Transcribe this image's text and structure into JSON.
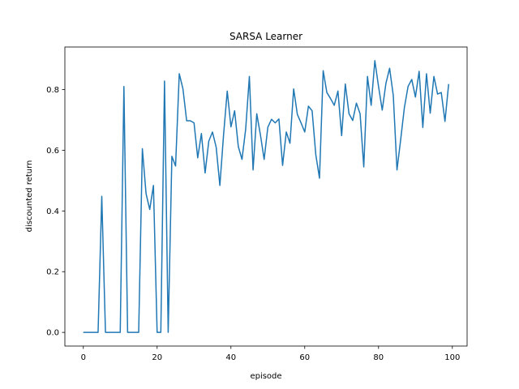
{
  "chart_data": {
    "type": "line",
    "title": "SARSA Learner",
    "xlabel": "episode",
    "ylabel": "discounted return",
    "xlim": [
      -5,
      104
    ],
    "ylim": [
      -0.045,
      0.94
    ],
    "xticks": [
      0,
      20,
      40,
      60,
      80,
      100
    ],
    "yticks": [
      0.0,
      0.2,
      0.4,
      0.6,
      0.8
    ],
    "ytick_labels": [
      "0.0",
      "0.2",
      "0.4",
      "0.6",
      "0.8"
    ],
    "grid": false,
    "line_color": "#1f77b4",
    "series": [
      {
        "x": [
          0,
          1,
          2,
          3,
          4,
          5,
          6,
          7,
          8,
          9,
          10,
          11,
          12,
          13,
          14,
          15,
          16,
          17,
          18,
          19,
          20,
          21,
          22,
          23,
          24,
          25,
          26,
          27,
          28,
          29,
          30,
          31,
          32,
          33,
          34,
          35,
          36,
          37,
          38,
          39,
          40,
          41,
          42,
          43,
          44,
          45,
          46,
          47,
          48,
          49,
          50,
          51,
          52,
          53,
          54,
          55,
          56,
          57,
          58,
          59,
          60,
          61,
          62,
          63,
          64,
          65,
          66,
          67,
          68,
          69,
          70,
          71,
          72,
          73,
          74,
          75,
          76,
          77,
          78,
          79,
          80,
          81,
          82,
          83,
          84,
          85,
          86,
          87,
          88,
          89,
          90,
          91,
          92,
          93,
          94,
          95,
          96,
          97,
          98,
          99
        ],
        "values": [
          0,
          0,
          0,
          0,
          0,
          0.448,
          0,
          0,
          0,
          0,
          0,
          0.81,
          0,
          0,
          0,
          0,
          0.605,
          0.457,
          0.405,
          0.484,
          0,
          0,
          0.828,
          0,
          0.58,
          0.548,
          0.852,
          0.802,
          0.697,
          0.697,
          0.69,
          0.575,
          0.655,
          0.525,
          0.63,
          0.66,
          0.61,
          0.484,
          0.65,
          0.795,
          0.677,
          0.73,
          0.612,
          0.57,
          0.67,
          0.843,
          0.535,
          0.72,
          0.65,
          0.57,
          0.676,
          0.702,
          0.69,
          0.703,
          0.55,
          0.66,
          0.623,
          0.802,
          0.718,
          0.69,
          0.66,
          0.745,
          0.73,
          0.585,
          0.508,
          0.862,
          0.79,
          0.77,
          0.748,
          0.795,
          0.648,
          0.818,
          0.72,
          0.698,
          0.755,
          0.72,
          0.545,
          0.843,
          0.748,
          0.895,
          0.81,
          0.732,
          0.82,
          0.87,
          0.78,
          0.535,
          0.635,
          0.74,
          0.81,
          0.833,
          0.775,
          0.86,
          0.675,
          0.852,
          0.722,
          0.843,
          0.785,
          0.79,
          0.695,
          0.818
        ]
      }
    ]
  }
}
